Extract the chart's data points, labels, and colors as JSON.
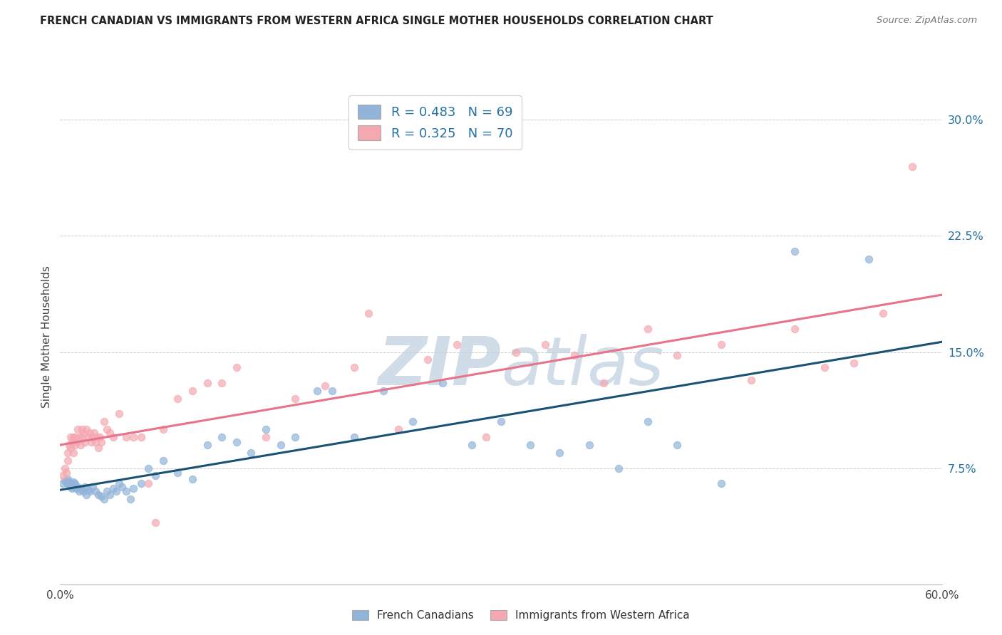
{
  "title": "FRENCH CANADIAN VS IMMIGRANTS FROM WESTERN AFRICA SINGLE MOTHER HOUSEHOLDS CORRELATION CHART",
  "source": "Source: ZipAtlas.com",
  "ylabel": "Single Mother Households",
  "xlim": [
    0.0,
    0.6
  ],
  "ylim": [
    0.0,
    0.32
  ],
  "ytick_positions": [
    0.075,
    0.15,
    0.225,
    0.3
  ],
  "ytick_labels": [
    "7.5%",
    "15.0%",
    "22.5%",
    "30.0%"
  ],
  "r_blue": 0.483,
  "n_blue": 69,
  "r_pink": 0.325,
  "n_pink": 70,
  "blue_color": "#92B4D8",
  "pink_color": "#F4A8B0",
  "blue_line_color": "#1A5276",
  "pink_line_color": "#E8738A",
  "blue_label_color": "#2471A3",
  "watermark_color": "#D0DCE8",
  "blue_scatter_x": [
    0.002,
    0.003,
    0.004,
    0.005,
    0.005,
    0.006,
    0.006,
    0.007,
    0.007,
    0.008,
    0.008,
    0.009,
    0.009,
    0.01,
    0.01,
    0.011,
    0.012,
    0.013,
    0.014,
    0.015,
    0.016,
    0.017,
    0.018,
    0.019,
    0.02,
    0.022,
    0.024,
    0.026,
    0.028,
    0.03,
    0.032,
    0.034,
    0.036,
    0.038,
    0.04,
    0.042,
    0.045,
    0.048,
    0.05,
    0.055,
    0.06,
    0.065,
    0.07,
    0.08,
    0.09,
    0.1,
    0.11,
    0.12,
    0.13,
    0.14,
    0.15,
    0.16,
    0.175,
    0.185,
    0.2,
    0.22,
    0.24,
    0.26,
    0.28,
    0.3,
    0.32,
    0.34,
    0.36,
    0.38,
    0.4,
    0.42,
    0.45,
    0.5,
    0.55
  ],
  "blue_scatter_y": [
    0.065,
    0.067,
    0.066,
    0.065,
    0.068,
    0.064,
    0.066,
    0.063,
    0.065,
    0.062,
    0.064,
    0.063,
    0.066,
    0.065,
    0.064,
    0.062,
    0.063,
    0.06,
    0.062,
    0.061,
    0.06,
    0.063,
    0.058,
    0.061,
    0.06,
    0.063,
    0.06,
    0.058,
    0.057,
    0.055,
    0.06,
    0.058,
    0.062,
    0.06,
    0.065,
    0.063,
    0.06,
    0.055,
    0.062,
    0.065,
    0.075,
    0.07,
    0.08,
    0.072,
    0.068,
    0.09,
    0.095,
    0.092,
    0.085,
    0.1,
    0.09,
    0.095,
    0.125,
    0.125,
    0.095,
    0.125,
    0.105,
    0.13,
    0.09,
    0.105,
    0.09,
    0.085,
    0.09,
    0.075,
    0.105,
    0.09,
    0.065,
    0.215,
    0.21
  ],
  "pink_scatter_x": [
    0.002,
    0.003,
    0.004,
    0.005,
    0.005,
    0.006,
    0.007,
    0.007,
    0.008,
    0.009,
    0.009,
    0.01,
    0.01,
    0.011,
    0.012,
    0.013,
    0.014,
    0.015,
    0.015,
    0.016,
    0.017,
    0.018,
    0.019,
    0.02,
    0.021,
    0.022,
    0.023,
    0.024,
    0.025,
    0.026,
    0.027,
    0.028,
    0.03,
    0.032,
    0.034,
    0.036,
    0.04,
    0.045,
    0.05,
    0.055,
    0.06,
    0.065,
    0.07,
    0.08,
    0.09,
    0.1,
    0.11,
    0.12,
    0.14,
    0.16,
    0.18,
    0.2,
    0.21,
    0.23,
    0.25,
    0.27,
    0.29,
    0.31,
    0.33,
    0.35,
    0.37,
    0.4,
    0.42,
    0.45,
    0.47,
    0.5,
    0.52,
    0.54,
    0.56,
    0.58
  ],
  "pink_scatter_y": [
    0.07,
    0.075,
    0.072,
    0.08,
    0.085,
    0.09,
    0.095,
    0.088,
    0.092,
    0.085,
    0.095,
    0.09,
    0.095,
    0.092,
    0.1,
    0.095,
    0.09,
    0.095,
    0.1,
    0.098,
    0.092,
    0.1,
    0.095,
    0.098,
    0.092,
    0.095,
    0.098,
    0.092,
    0.095,
    0.088,
    0.095,
    0.092,
    0.105,
    0.1,
    0.098,
    0.095,
    0.11,
    0.095,
    0.095,
    0.095,
    0.065,
    0.04,
    0.1,
    0.12,
    0.125,
    0.13,
    0.13,
    0.14,
    0.095,
    0.12,
    0.128,
    0.14,
    0.175,
    0.1,
    0.145,
    0.155,
    0.095,
    0.15,
    0.155,
    0.148,
    0.13,
    0.165,
    0.148,
    0.155,
    0.132,
    0.165,
    0.14,
    0.143,
    0.175,
    0.27
  ]
}
